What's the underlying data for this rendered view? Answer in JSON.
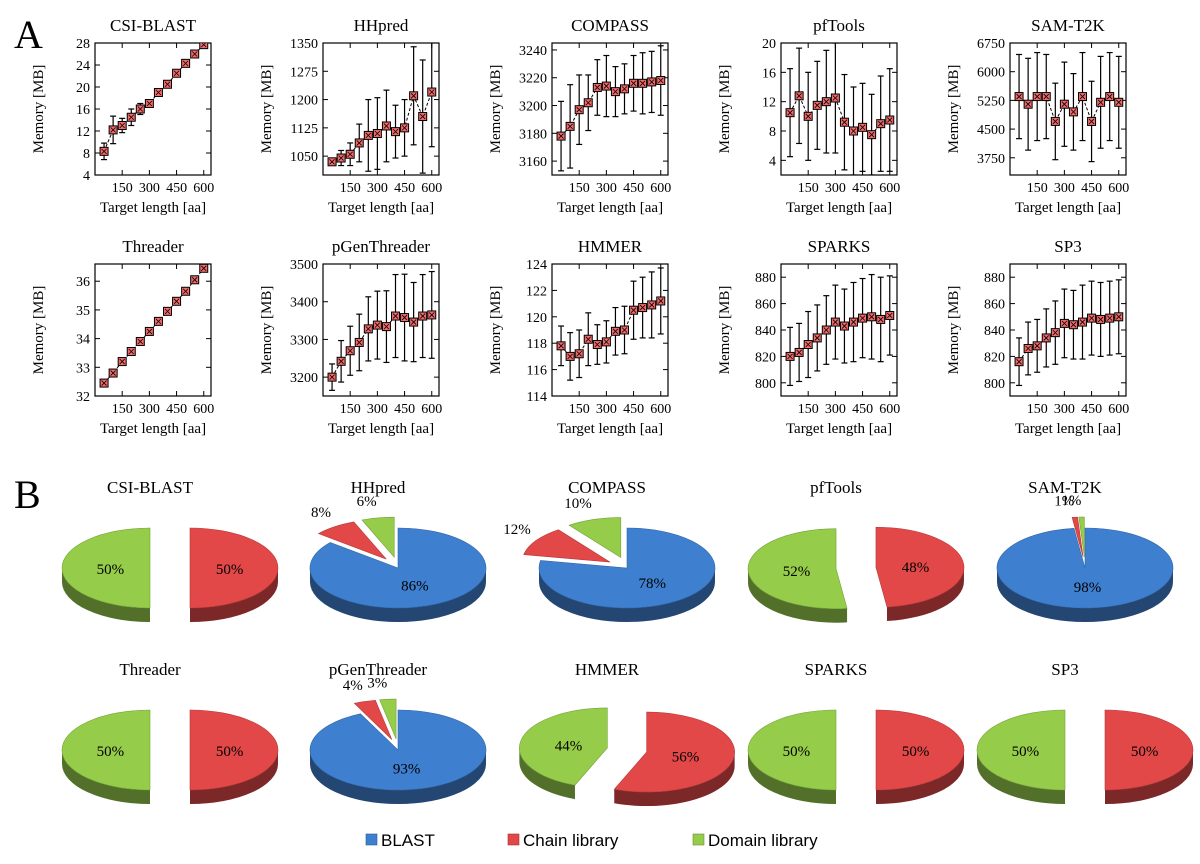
{
  "panels": {
    "a": "A",
    "b": "B"
  },
  "colors": {
    "blast": "#3f7fd0",
    "chain": "#e24848",
    "domain": "#95cc4a",
    "marker": "#f26a6a"
  },
  "legend": [
    {
      "label": "BLAST",
      "key": "blast"
    },
    {
      "label": "Chain library",
      "key": "chain"
    },
    {
      "label": "Domain library",
      "key": "domain"
    }
  ],
  "chart_data": [
    {
      "type": "scatter",
      "title": "CSI-BLAST",
      "xlabel": "Target length [aa]",
      "ylabel": "Memory [MB]",
      "xlim": [
        0,
        640
      ],
      "xticks": [
        150,
        300,
        450,
        600
      ],
      "xtick_labels": [
        "150",
        "300",
        "450",
        "600"
      ],
      "ylim": [
        4,
        28
      ],
      "yticks": [
        4,
        8,
        12,
        16,
        20,
        24,
        28
      ],
      "ytick_labels": [
        "4",
        "8",
        "12",
        "16",
        "20",
        "24",
        "28"
      ],
      "x": [
        50,
        100,
        150,
        200,
        250,
        300,
        350,
        400,
        450,
        500,
        550,
        600
      ],
      "y": [
        8.3,
        12.2,
        13.0,
        14.5,
        16.0,
        17.0,
        19.0,
        20.5,
        22.5,
        24.3,
        26.0,
        27.7
      ],
      "err": [
        1.5,
        2.5,
        1.3,
        1.5,
        1.0,
        0.6,
        0.4,
        0.4,
        0.4,
        0.4,
        0.4,
        0.4
      ]
    },
    {
      "type": "scatter",
      "title": "HHpred",
      "xlabel": "Target length [aa]",
      "ylabel": "Memory [MB]",
      "xlim": [
        0,
        640
      ],
      "xticks": [
        150,
        300,
        450,
        600
      ],
      "xtick_labels": [
        "150",
        "300",
        "450",
        "600"
      ],
      "ylim": [
        1000,
        1350
      ],
      "yticks": [
        1050,
        1125,
        1200,
        1275,
        1350
      ],
      "ytick_labels": [
        "1050",
        "1125",
        "1200",
        "1275",
        "1350"
      ],
      "x": [
        50,
        100,
        150,
        200,
        250,
        300,
        350,
        400,
        450,
        500,
        550,
        600
      ],
      "y": [
        1035,
        1045,
        1055,
        1085,
        1105,
        1110,
        1130,
        1115,
        1125,
        1210,
        1155,
        1220
      ],
      "err": [
        8,
        20,
        30,
        50,
        95,
        95,
        95,
        70,
        75,
        130,
        150,
        145
      ]
    },
    {
      "type": "scatter",
      "title": "COMPASS",
      "xlabel": "Target length [aa]",
      "ylabel": "Memory [MB]",
      "xlim": [
        0,
        640
      ],
      "xticks": [
        150,
        300,
        450,
        600
      ],
      "xtick_labels": [
        "150",
        "300",
        "450",
        "600"
      ],
      "ylim": [
        3150,
        3245
      ],
      "yticks": [
        3160,
        3180,
        3200,
        3220,
        3240
      ],
      "ytick_labels": [
        "3160",
        "3180",
        "3200",
        "3220",
        "3240"
      ],
      "x": [
        50,
        100,
        150,
        200,
        250,
        300,
        350,
        400,
        450,
        500,
        550,
        600
      ],
      "y": [
        3178,
        3185,
        3197,
        3202,
        3213,
        3214,
        3210,
        3212,
        3216,
        3216,
        3217,
        3218
      ],
      "err": [
        25,
        30,
        25,
        20,
        20,
        22,
        18,
        18,
        20,
        22,
        22,
        25
      ]
    },
    {
      "type": "scatter",
      "title": "pfTools",
      "xlabel": "Target length [aa]",
      "ylabel": "Memory [MB]",
      "xlim": [
        0,
        640
      ],
      "xticks": [
        150,
        300,
        450,
        600
      ],
      "xtick_labels": [
        "150",
        "300",
        "450",
        "600"
      ],
      "ylim": [
        2,
        20
      ],
      "yticks": [
        4,
        8,
        12,
        16,
        20
      ],
      "ytick_labels": [
        "4",
        "8",
        "12",
        "16",
        "20"
      ],
      "x": [
        50,
        100,
        150,
        200,
        250,
        300,
        350,
        400,
        450,
        500,
        550,
        600
      ],
      "y": [
        10.5,
        12.8,
        10.0,
        11.5,
        12.0,
        12.5,
        9.2,
        8.0,
        8.5,
        7.5,
        9.0,
        9.5
      ],
      "err": [
        6.0,
        6.5,
        6.0,
        6.0,
        7.0,
        7.5,
        6.5,
        6.0,
        6.0,
        5.5,
        6.5,
        7.0
      ]
    },
    {
      "type": "scatter",
      "title": "SAM-T2K",
      "xlabel": "Target length [aa]",
      "ylabel": "Memory [MB]",
      "xlim": [
        0,
        640
      ],
      "xticks": [
        150,
        300,
        450,
        600
      ],
      "xtick_labels": [
        "150",
        "300",
        "450",
        "600"
      ],
      "ylim": [
        3300,
        6750
      ],
      "yticks": [
        3750,
        4500,
        5250,
        6000,
        6750
      ],
      "ytick_labels": [
        "3750",
        "4500",
        "5250",
        "6000",
        "6750"
      ],
      "x": [
        50,
        100,
        150,
        200,
        250,
        300,
        350,
        400,
        450,
        500,
        550,
        600
      ],
      "y": [
        5350,
        5150,
        5350,
        5350,
        4700,
        5150,
        4950,
        5350,
        4700,
        5200,
        5350,
        5200
      ],
      "err": [
        1100,
        1200,
        1150,
        1100,
        1000,
        1100,
        1000,
        1150,
        1050,
        1200,
        1150,
        1200
      ]
    },
    {
      "type": "scatter",
      "title": "Threader",
      "xlabel": "Target length [aa]",
      "ylabel": "Memory [MB]",
      "xlim": [
        0,
        640
      ],
      "xticks": [
        150,
        300,
        450,
        600
      ],
      "xtick_labels": [
        "150",
        "300",
        "450",
        "600"
      ],
      "ylim": [
        32,
        36.6
      ],
      "yticks": [
        32,
        33,
        34,
        35,
        36
      ],
      "ytick_labels": [
        "32",
        "33",
        "34",
        "35",
        "36"
      ],
      "x": [
        50,
        100,
        150,
        200,
        250,
        300,
        350,
        400,
        450,
        500,
        550,
        600
      ],
      "y": [
        32.45,
        32.8,
        33.2,
        33.55,
        33.9,
        34.25,
        34.6,
        34.95,
        35.3,
        35.65,
        36.05,
        36.45
      ],
      "err": [
        0.05,
        0.05,
        0.05,
        0.05,
        0.05,
        0.05,
        0.05,
        0.05,
        0.05,
        0.05,
        0.05,
        0.05
      ]
    },
    {
      "type": "scatter",
      "title": "pGenThreader",
      "xlabel": "Target length [aa]",
      "ylabel": "Memory [MB]",
      "xlim": [
        0,
        640
      ],
      "xticks": [
        150,
        300,
        450,
        600
      ],
      "xtick_labels": [
        "150",
        "300",
        "450",
        "600"
      ],
      "ylim": [
        3150,
        3500
      ],
      "yticks": [
        3200,
        3300,
        3400,
        3500
      ],
      "ytick_labels": [
        "3200",
        "3300",
        "3400",
        "3500"
      ],
      "x": [
        50,
        100,
        150,
        200,
        250,
        300,
        350,
        400,
        450,
        500,
        550,
        600
      ],
      "y": [
        3200,
        3242,
        3270,
        3292,
        3328,
        3338,
        3334,
        3362,
        3358,
        3346,
        3362,
        3365
      ],
      "err": [
        35,
        55,
        65,
        75,
        85,
        90,
        95,
        110,
        115,
        105,
        110,
        115
      ]
    },
    {
      "type": "scatter",
      "title": "HMMER",
      "xlabel": "Target length [aa]",
      "ylabel": "Memory [MB]",
      "xlim": [
        0,
        640
      ],
      "xticks": [
        150,
        300,
        450,
        600
      ],
      "xtick_labels": [
        "150",
        "300",
        "450",
        "600"
      ],
      "ylim": [
        114,
        124
      ],
      "yticks": [
        114,
        116,
        118,
        120,
        122,
        124
      ],
      "ytick_labels": [
        "114",
        "116",
        "118",
        "120",
        "122",
        "124"
      ],
      "x": [
        50,
        100,
        150,
        200,
        250,
        300,
        350,
        400,
        450,
        500,
        550,
        600
      ],
      "y": [
        117.8,
        117.0,
        117.2,
        118.3,
        117.9,
        118.1,
        118.9,
        119.0,
        120.5,
        120.7,
        120.9,
        121.2
      ],
      "err": [
        1.5,
        1.8,
        1.8,
        2.0,
        1.5,
        1.6,
        1.8,
        1.8,
        2.2,
        2.3,
        2.5,
        2.5
      ]
    },
    {
      "type": "scatter",
      "title": "SPARKS",
      "xlabel": "Target length [aa]",
      "ylabel": "Memory [MB]",
      "xlim": [
        0,
        640
      ],
      "xticks": [
        150,
        300,
        450,
        600
      ],
      "xtick_labels": [
        "150",
        "300",
        "450",
        "600"
      ],
      "ylim": [
        790,
        890
      ],
      "yticks": [
        800,
        820,
        840,
        860,
        880
      ],
      "ytick_labels": [
        "800",
        "820",
        "840",
        "860",
        "880"
      ],
      "x": [
        50,
        100,
        150,
        200,
        250,
        300,
        350,
        400,
        450,
        500,
        550,
        600
      ],
      "y": [
        820,
        823,
        829,
        834,
        840,
        846,
        843,
        846,
        849,
        850,
        848,
        851
      ],
      "err": [
        22,
        22,
        25,
        25,
        26,
        28,
        28,
        30,
        30,
        32,
        32,
        30
      ]
    },
    {
      "type": "scatter",
      "title": "SP3",
      "xlabel": "Target length [aa]",
      "ylabel": "Memory [MB]",
      "xlim": [
        0,
        640
      ],
      "xticks": [
        150,
        300,
        450,
        600
      ],
      "xtick_labels": [
        "150",
        "300",
        "450",
        "600"
      ],
      "ylim": [
        790,
        890
      ],
      "yticks": [
        800,
        820,
        840,
        860,
        880
      ],
      "ytick_labels": [
        "800",
        "820",
        "840",
        "860",
        "880"
      ],
      "x": [
        50,
        100,
        150,
        200,
        250,
        300,
        350,
        400,
        450,
        500,
        550,
        600
      ],
      "y": [
        816,
        826,
        828,
        834,
        838,
        845,
        844,
        846,
        849,
        848,
        849,
        850
      ],
      "err": [
        18,
        20,
        20,
        22,
        24,
        26,
        26,
        28,
        28,
        28,
        28,
        28
      ]
    },
    {
      "type": "pie",
      "title": "CSI-BLAST",
      "slices": [
        {
          "key": "chain",
          "value": 50,
          "label": "50%"
        },
        {
          "key": "domain",
          "value": 50,
          "label": "50%"
        }
      ]
    },
    {
      "type": "pie",
      "title": "HHpred",
      "slices": [
        {
          "key": "blast",
          "value": 86,
          "label": "86%"
        },
        {
          "key": "chain",
          "value": 8,
          "label": "8%"
        },
        {
          "key": "domain",
          "value": 6,
          "label": "6%"
        }
      ]
    },
    {
      "type": "pie",
      "title": "COMPASS",
      "slices": [
        {
          "key": "blast",
          "value": 78,
          "label": "78%"
        },
        {
          "key": "chain",
          "value": 12,
          "label": "12%"
        },
        {
          "key": "domain",
          "value": 10,
          "label": "10%"
        }
      ]
    },
    {
      "type": "pie",
      "title": "pfTools",
      "slices": [
        {
          "key": "chain",
          "value": 48,
          "label": "48%"
        },
        {
          "key": "domain",
          "value": 52,
          "label": "52%"
        }
      ]
    },
    {
      "type": "pie",
      "title": "SAM-T2K",
      "slices": [
        {
          "key": "blast",
          "value": 98,
          "label": "98%"
        },
        {
          "key": "chain",
          "value": 1,
          "label": "1%"
        },
        {
          "key": "domain",
          "value": 1,
          "label": "1%"
        }
      ]
    },
    {
      "type": "pie",
      "title": "Threader",
      "slices": [
        {
          "key": "chain",
          "value": 50,
          "label": "50%"
        },
        {
          "key": "domain",
          "value": 50,
          "label": "50%"
        }
      ]
    },
    {
      "type": "pie",
      "title": "pGenThreader",
      "slices": [
        {
          "key": "blast",
          "value": 93,
          "label": "93%"
        },
        {
          "key": "chain",
          "value": 4,
          "label": "4%"
        },
        {
          "key": "domain",
          "value": 3,
          "label": "3%"
        }
      ]
    },
    {
      "type": "pie",
      "title": "HMMER",
      "slices": [
        {
          "key": "chain",
          "value": 56,
          "label": "56%"
        },
        {
          "key": "domain",
          "value": 44,
          "label": "44%"
        }
      ]
    },
    {
      "type": "pie",
      "title": "SPARKS",
      "slices": [
        {
          "key": "chain",
          "value": 50,
          "label": "50%"
        },
        {
          "key": "domain",
          "value": 50,
          "label": "50%"
        }
      ]
    },
    {
      "type": "pie",
      "title": "SP3",
      "slices": [
        {
          "key": "chain",
          "value": 50,
          "label": "50%"
        },
        {
          "key": "domain",
          "value": 50,
          "label": "50%"
        }
      ]
    }
  ]
}
